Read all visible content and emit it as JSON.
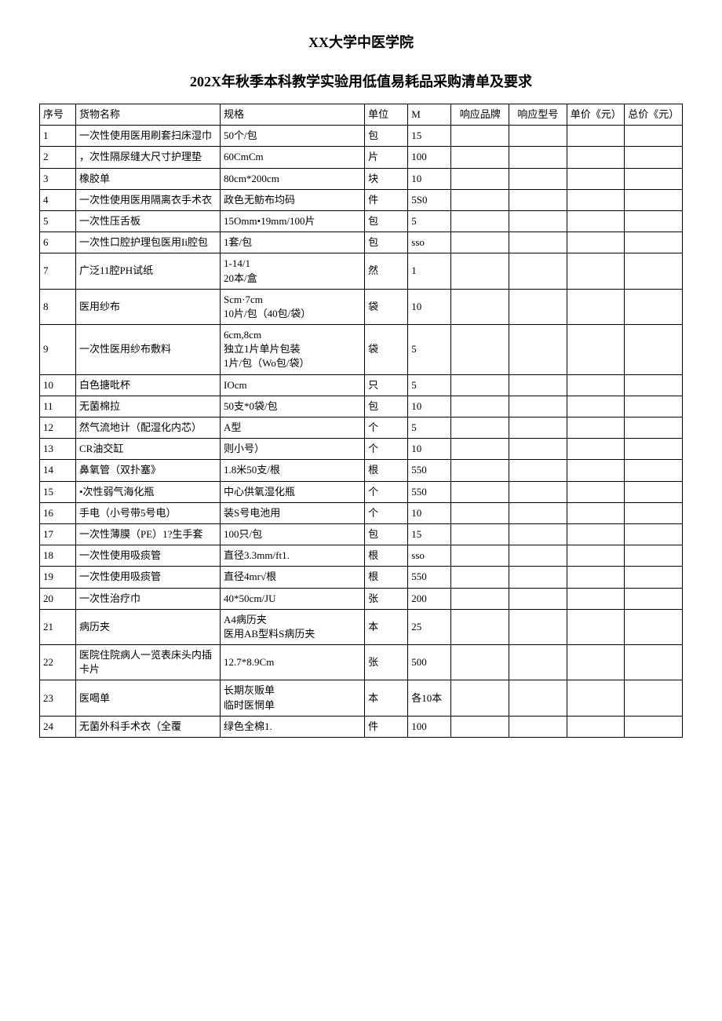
{
  "title1": "XX大学中医学院",
  "title2": "202X年秋季本科教学实验用低值易耗品采购清单及要求",
  "headers": {
    "seq": "序号",
    "name": "货物名称",
    "spec": "规格",
    "unit": "单位",
    "qty": "M",
    "brand": "响应品牌",
    "model": "响应型号",
    "price": "单价《元）",
    "total": "总价《元）"
  },
  "rows": [
    {
      "seq": "1",
      "name": "一次性使用医用刷套扫床湿巾",
      "spec": "50个/包",
      "unit": "包",
      "qty": "15"
    },
    {
      "seq": "2",
      "name": "，次性隔尿缝大尺寸护理垫",
      "spec": "60CmCm",
      "unit": "片",
      "qty": "100"
    },
    {
      "seq": "3",
      "name": "橡胶单",
      "spec": "80cm*200cm",
      "unit": "块",
      "qty": "10"
    },
    {
      "seq": "4",
      "name": "一次性使用医用隔离衣手术衣",
      "spec": "政色无鲂布均码",
      "unit": "件",
      "qty": "5S0"
    },
    {
      "seq": "5",
      "name": "一次性压舌板",
      "spec": "15Omm•19mm/100片",
      "unit": "包",
      "qty": "5"
    },
    {
      "seq": "6",
      "name": "一次性口腔护理包医用Ii腔包",
      "spec": "1套/包",
      "unit": "包",
      "qty": "sso"
    },
    {
      "seq": "7",
      "name": "广泛11腔PH试纸",
      "spec": "1-14/1\n20本/盒",
      "unit": "然",
      "qty": "1"
    },
    {
      "seq": "8",
      "name": "医用纱布",
      "spec": "Scm·7cm\n10片/包（40包/袋）",
      "unit": "袋",
      "qty": "10"
    },
    {
      "seq": "9",
      "name": "一次性医用纱布敷料",
      "spec": "6cm,8cm\n独立1片单片包装\n1片/包（Wo包/袋）",
      "unit": "袋",
      "qty": "5"
    },
    {
      "seq": "10",
      "name": "白色搪吡杯",
      "spec": "IOcm",
      "unit": "只",
      "qty": "5"
    },
    {
      "seq": "11",
      "name": "无菌棉拉",
      "spec": "50支*0袋/包",
      "unit": "包",
      "qty": "10"
    },
    {
      "seq": "12",
      "name": "然气流地计（配湿化内芯）",
      "spec": "A型",
      "unit": "个",
      "qty": "5"
    },
    {
      "seq": "13",
      "name": "CR油交缸",
      "spec": "则小号）",
      "unit": "个",
      "qty": "10"
    },
    {
      "seq": "14",
      "name": "鼻氧管（双扑塞》",
      "spec": "1.8米50支/根",
      "unit": "根",
      "qty": "550"
    },
    {
      "seq": "15",
      "name": "•次性弱气海化瓶",
      "spec": "中心供氧湿化瓶",
      "unit": "个",
      "qty": "550"
    },
    {
      "seq": "16",
      "name": "手电（小号带5号电）",
      "spec": "装S号电池用",
      "unit": "个",
      "qty": "10"
    },
    {
      "seq": "17",
      "name": "一次性薄膜（PE）1?生手套",
      "spec": "100只/包",
      "unit": "包",
      "qty": "15"
    },
    {
      "seq": "18",
      "name": "一次性使用吸痰管",
      "spec": "直径3.3mm/ft1.",
      "unit": "根",
      "qty": "sso"
    },
    {
      "seq": "19",
      "name": "一次性使用吸痰管",
      "spec": "直径4mr√根",
      "unit": "根",
      "qty": "550"
    },
    {
      "seq": "20",
      "name": "一次性治疗巾",
      "spec": "40*50cm/JU",
      "unit": "张",
      "qty": "200"
    },
    {
      "seq": "21",
      "name": "病历夹",
      "spec": "A4病历夹\n医用AB型料S病历夹",
      "unit": "本",
      "qty": "25"
    },
    {
      "seq": "22",
      "name": "医院住院病人一览表床头内插卡片",
      "spec": "12.7*8.9Cm",
      "unit": "张",
      "qty": "500"
    },
    {
      "seq": "23",
      "name": "医喝单",
      "spec": "长期灰贩单\n临时医惘单",
      "unit": "本",
      "qty": "各10本"
    },
    {
      "seq": "24",
      "name": "无菌外科手术衣（全覆",
      "spec": "绿色全棉1.",
      "unit": "件",
      "qty": "100"
    }
  ]
}
